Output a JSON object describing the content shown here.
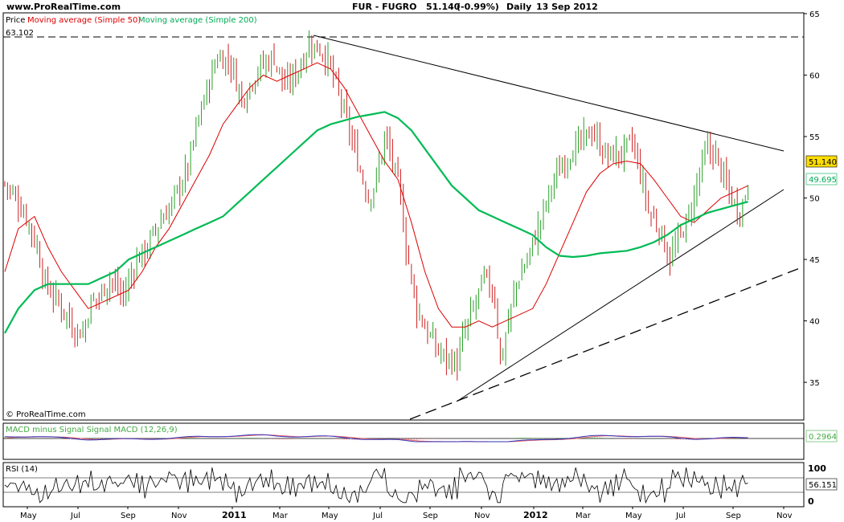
{
  "header": {
    "site": "www.ProRealTime.com",
    "instrument": "FUR - FUGRO",
    "price": "51.140",
    "change": "(-0.99%)",
    "period": "Daily",
    "date": "13 Sep 2012"
  },
  "legend": {
    "price": "Price",
    "ma50": "Moving average (Simple 50)",
    "ma200": "Moving average (Simple 200)"
  },
  "copyright": "© ProRealTime.com",
  "colors": {
    "price_up": "#2aa02a",
    "price_down": "#cc2222",
    "ma50": "#dd0000",
    "ma200": "#00bb55",
    "macd": "#3333bb",
    "signal": "#ee6666",
    "histogram": "#44bb44",
    "rsi": "#000000",
    "last_price_box": "#ffdd00"
  },
  "chart_data": [
    {
      "type": "candlestick",
      "title": "FUR - FUGRO",
      "y_ticks": [
        "65",
        "60",
        "55",
        "50",
        "45",
        "40",
        "35"
      ],
      "ylim": [
        32,
        65
      ],
      "x_ticks": [
        "May",
        "Jul",
        "Sep",
        "Nov",
        "2011",
        "Mar",
        "May",
        "Jul",
        "Sep",
        "Nov",
        "2012",
        "Mar",
        "May",
        "Jul",
        "Sep",
        "Nov"
      ],
      "reference_line": {
        "label": "63.102",
        "value": 63.102
      },
      "last_values": {
        "price": "51.140",
        "ma200": "49.695"
      },
      "series": [
        {
          "name": "Price",
          "points": [
            [
              0,
              51.2
            ],
            [
              4,
              50
            ],
            [
              8,
              48.5
            ],
            [
              12,
              46
            ],
            [
              15,
              43
            ],
            [
              19,
              41.8
            ],
            [
              23,
              40.5
            ],
            [
              25,
              39.5
            ],
            [
              29,
              39
            ],
            [
              32,
              41.5
            ],
            [
              35,
              42
            ],
            [
              39,
              43.5
            ],
            [
              44,
              42
            ],
            [
              49,
              45
            ],
            [
              53,
              46
            ],
            [
              56,
              47.5
            ],
            [
              62,
              49.5
            ],
            [
              68,
              52.5
            ],
            [
              72,
              56.5
            ],
            [
              76,
              59.5
            ],
            [
              79,
              61.5
            ],
            [
              84,
              61
            ],
            [
              88,
              58
            ],
            [
              94,
              60.5
            ],
            [
              100,
              61.5
            ],
            [
              104,
              59
            ],
            [
              109,
              60.5
            ],
            [
              113,
              62.5
            ],
            [
              118,
              62
            ],
            [
              121,
              60.5
            ],
            [
              126,
              57
            ],
            [
              131,
              53
            ],
            [
              135,
              50
            ],
            [
              138,
              51.5
            ],
            [
              141,
              55
            ],
            [
              144,
              53
            ],
            [
              147,
              50
            ],
            [
              149,
              46
            ],
            [
              153,
              41
            ],
            [
              157,
              39
            ],
            [
              161,
              37.5
            ],
            [
              164,
              37
            ],
            [
              168,
              36.5
            ],
            [
              170,
              38.5
            ],
            [
              174,
              41
            ],
            [
              178,
              43.5
            ],
            [
              182,
              42
            ],
            [
              184,
              36.5
            ],
            [
              187,
              40
            ],
            [
              190,
              43
            ],
            [
              194,
              45
            ],
            [
              198,
              47.5
            ],
            [
              203,
              51
            ],
            [
              209,
              53.5
            ],
            [
              214,
              54.5
            ],
            [
              218,
              55.5
            ],
            [
              223,
              53.5
            ],
            [
              228,
              53.5
            ],
            [
              233,
              54.5
            ],
            [
              236,
              52
            ],
            [
              239,
              49
            ],
            [
              243,
              47.5
            ],
            [
              247,
              45
            ],
            [
              251,
              47
            ],
            [
              254,
              48.5
            ],
            [
              258,
              52
            ],
            [
              261,
              54
            ],
            [
              264,
              53.5
            ],
            [
              267,
              51.5
            ],
            [
              270,
              50
            ],
            [
              272,
              49
            ],
            [
              274,
              49.5
            ],
            [
              276,
              51.14
            ]
          ]
        },
        {
          "name": "Moving average (Simple 50)",
          "points": [
            [
              0,
              44
            ],
            [
              5,
              47.5
            ],
            [
              11,
              48.5
            ],
            [
              16,
              46
            ],
            [
              21,
              44
            ],
            [
              26,
              42.5
            ],
            [
              31,
              41
            ],
            [
              36,
              41.5
            ],
            [
              41,
              42
            ],
            [
              46,
              42.5
            ],
            [
              51,
              44
            ],
            [
              56,
              46
            ],
            [
              61,
              47.5
            ],
            [
              66,
              49.5
            ],
            [
              71,
              51.5
            ],
            [
              76,
              53.5
            ],
            [
              81,
              56
            ],
            [
              86,
              57.5
            ],
            [
              91,
              59
            ],
            [
              96,
              60
            ],
            [
              101,
              59.5
            ],
            [
              106,
              60
            ],
            [
              111,
              60.5
            ],
            [
              116,
              61
            ],
            [
              121,
              60.5
            ],
            [
              126,
              59
            ],
            [
              131,
              57
            ],
            [
              136,
              55
            ],
            [
              141,
              53
            ],
            [
              146,
              51.5
            ],
            [
              151,
              48
            ],
            [
              156,
              44
            ],
            [
              161,
              41
            ],
            [
              166,
              39.5
            ],
            [
              171,
              39.5
            ],
            [
              176,
              40
            ],
            [
              181,
              39.5
            ],
            [
              186,
              40
            ],
            [
              191,
              40.5
            ],
            [
              196,
              41
            ],
            [
              201,
              43
            ],
            [
              206,
              45.5
            ],
            [
              211,
              48
            ],
            [
              216,
              50.5
            ],
            [
              221,
              52
            ],
            [
              226,
              52.8
            ],
            [
              231,
              53
            ],
            [
              236,
              52.8
            ],
            [
              241,
              51.5
            ],
            [
              246,
              50
            ],
            [
              251,
              48.5
            ],
            [
              256,
              48
            ],
            [
              261,
              49
            ],
            [
              266,
              50
            ],
            [
              271,
              50.5
            ],
            [
              276,
              51
            ]
          ]
        },
        {
          "name": "Moving average (Simple 200)",
          "points": [
            [
              0,
              39
            ],
            [
              5,
              41
            ],
            [
              11,
              42.5
            ],
            [
              16,
              43
            ],
            [
              21,
              43
            ],
            [
              26,
              43
            ],
            [
              31,
              43
            ],
            [
              36,
              43.5
            ],
            [
              41,
              44
            ],
            [
              46,
              45
            ],
            [
              51,
              45.5
            ],
            [
              56,
              46
            ],
            [
              61,
              46.5
            ],
            [
              66,
              47
            ],
            [
              71,
              47.5
            ],
            [
              76,
              48
            ],
            [
              81,
              48.5
            ],
            [
              86,
              49.5
            ],
            [
              91,
              50.5
            ],
            [
              96,
              51.5
            ],
            [
              101,
              52.5
            ],
            [
              106,
              53.5
            ],
            [
              111,
              54.5
            ],
            [
              116,
              55.5
            ],
            [
              121,
              56
            ],
            [
              126,
              56.3
            ],
            [
              131,
              56.6
            ],
            [
              136,
              56.8
            ],
            [
              141,
              57
            ],
            [
              146,
              56.5
            ],
            [
              151,
              55.5
            ],
            [
              156,
              54
            ],
            [
              161,
              52.5
            ],
            [
              166,
              51
            ],
            [
              171,
              50
            ],
            [
              176,
              49
            ],
            [
              181,
              48.5
            ],
            [
              186,
              48
            ],
            [
              191,
              47.5
            ],
            [
              196,
              47
            ],
            [
              201,
              46
            ],
            [
              206,
              45.3
            ],
            [
              211,
              45.2
            ],
            [
              216,
              45.3
            ],
            [
              221,
              45.5
            ],
            [
              226,
              45.6
            ],
            [
              231,
              45.7
            ],
            [
              236,
              46
            ],
            [
              241,
              46.4
            ],
            [
              246,
              47
            ],
            [
              251,
              47.8
            ],
            [
              256,
              48.3
            ],
            [
              261,
              48.8
            ],
            [
              266,
              49.1
            ],
            [
              271,
              49.4
            ],
            [
              276,
              49.695
            ]
          ]
        }
      ]
    },
    {
      "type": "line",
      "title": "MACD minus Signal Signal MACD (12,26,9)",
      "last_value": "0.2964",
      "series": [
        {
          "name": "MACD (12,26,9)"
        },
        {
          "name": "Signal"
        },
        {
          "name": "MACD minus Signal"
        }
      ]
    },
    {
      "type": "line",
      "title": "RSI (14)",
      "y_ticks": [
        "100",
        "0"
      ],
      "ylim": [
        0,
        100
      ],
      "last_value": "56.151",
      "series": [
        {
          "name": "RSI (14)"
        }
      ]
    }
  ]
}
